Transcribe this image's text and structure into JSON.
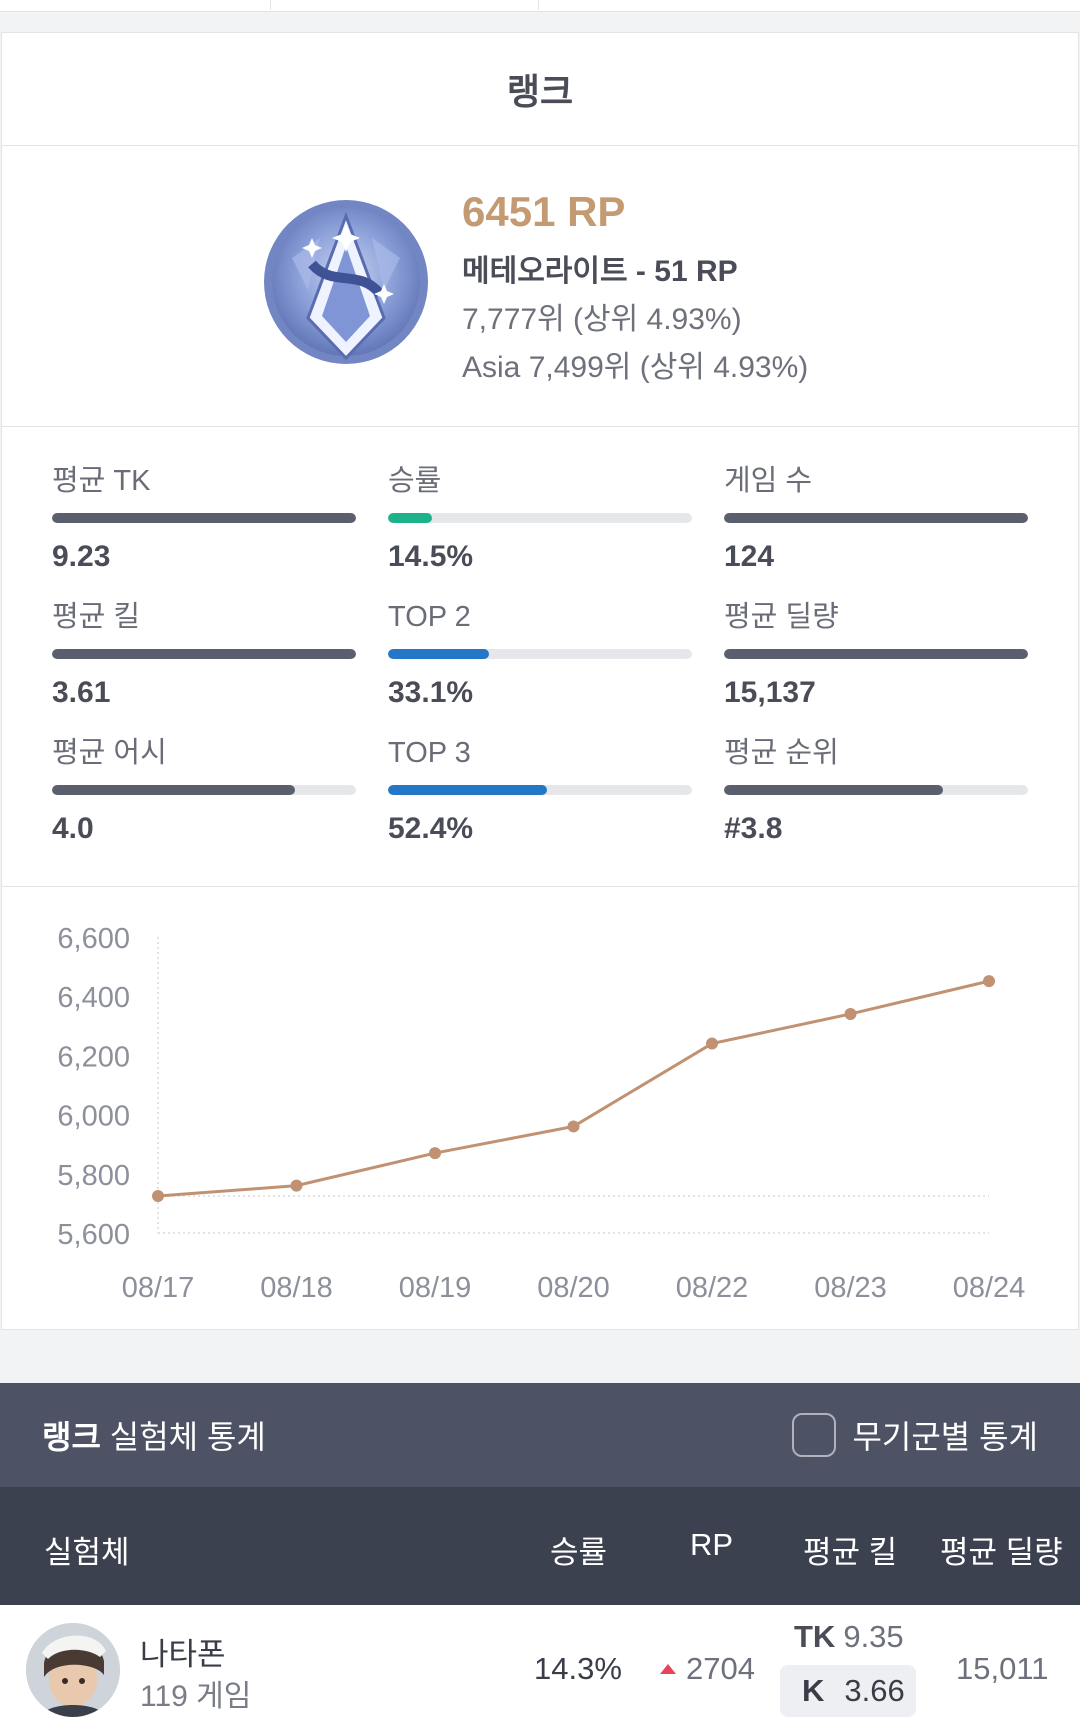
{
  "rank_card": {
    "title": "랭크",
    "rp": "6451 RP",
    "tier": "메테오라이트 - 51 RP",
    "rank": "7,777위 (상위 4.93%)",
    "asia_rank": "Asia 7,499위 (상위 4.93%)",
    "tier_icon": "meteorite-tier-emblem"
  },
  "stats": [
    {
      "label": "평균 TK",
      "value": "9.23",
      "fill": 1.0,
      "color": "#5a5f6e"
    },
    {
      "label": "승률",
      "value": "14.5%",
      "fill": 0.145,
      "color": "#1db38a"
    },
    {
      "label": "게임 수",
      "value": "124",
      "fill": 1.0,
      "color": "#5a5f6e"
    },
    {
      "label": "평균 킬",
      "value": "3.61",
      "fill": 1.0,
      "color": "#5a5f6e"
    },
    {
      "label": "TOP 2",
      "value": "33.1%",
      "fill": 0.331,
      "color": "#2477c7"
    },
    {
      "label": "평균 딜량",
      "value": "15,137",
      "fill": 1.0,
      "color": "#5a5f6e"
    },
    {
      "label": "평균 어시",
      "value": "4.0",
      "fill": 0.8,
      "color": "#5a5f6e"
    },
    {
      "label": "TOP 3",
      "value": "52.4%",
      "fill": 0.524,
      "color": "#2477c7"
    },
    {
      "label": "평균 순위",
      "value": "#3.8",
      "fill": 0.72,
      "color": "#5a5f6e"
    }
  ],
  "chart_data": {
    "type": "line",
    "categories": [
      "08/17",
      "08/18",
      "08/19",
      "08/20",
      "08/22",
      "08/23",
      "08/24"
    ],
    "series": [
      {
        "values": [
          5725,
          5760,
          5870,
          5960,
          6240,
          6340,
          6451
        ]
      }
    ],
    "y_ticks": [
      "6,600",
      "6,400",
      "6,200",
      "6,000",
      "5,800",
      "5,600"
    ],
    "ylim": [
      5600,
      6600
    ],
    "color": "#c09272",
    "grid": "dotted"
  },
  "section": {
    "title_bold": "랭크",
    "title_rest": " 실험체 통계",
    "toggle_label": "무기군별 통계"
  },
  "table": {
    "headers": {
      "character": "실험체",
      "win": "승률",
      "rp": "RP",
      "kill": "평균 킬",
      "dmg": "평균 딜량"
    },
    "row": {
      "name": "나타폰",
      "games": "119 게임",
      "win": "14.3%",
      "rp": "2704",
      "tk_label": "TK",
      "tk": "9.35",
      "k_label": "K",
      "k": "3.66",
      "dmg": "15,011",
      "rp_trend_icon": "up-arrow-icon",
      "up_color": "#e8455c"
    }
  }
}
